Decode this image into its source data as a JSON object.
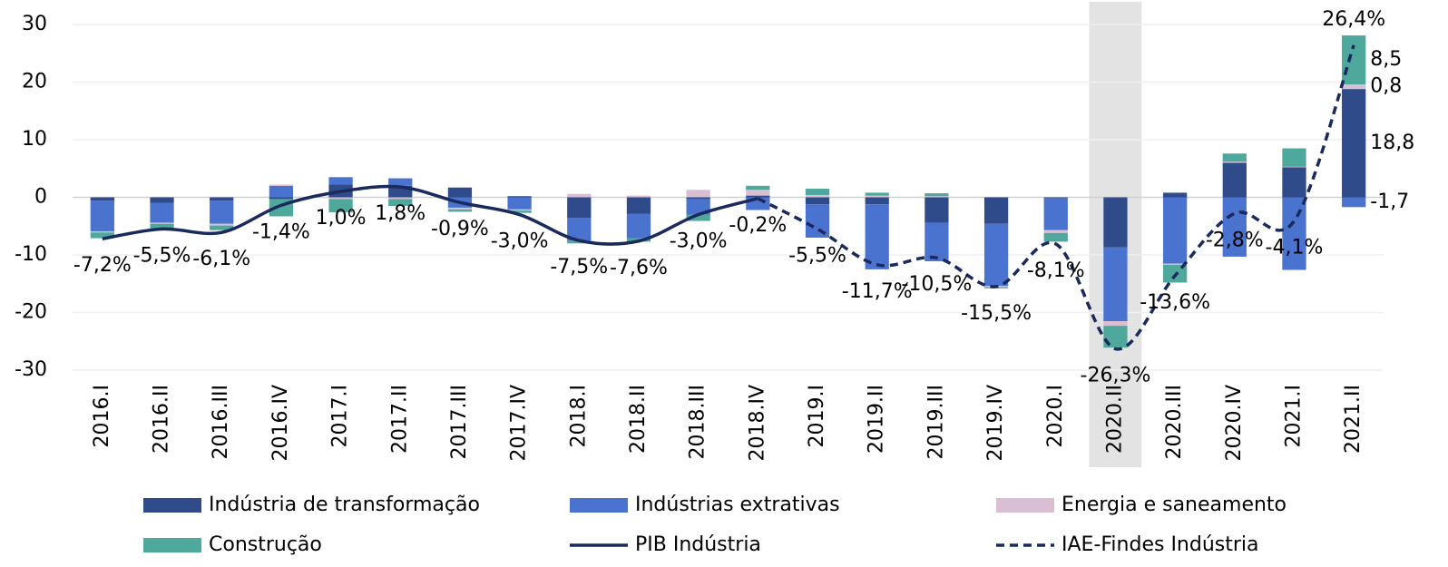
{
  "chart_data": {
    "type": "bar",
    "categories": [
      "2016.I",
      "2016.II",
      "2016.III",
      "2016.IV",
      "2017.I",
      "2017.II",
      "2017.III",
      "2017.IV",
      "2018.I",
      "2018.II",
      "2018.III",
      "2018.IV",
      "2019.I",
      "2019.II",
      "2019.III",
      "2019.IV",
      "2020.I",
      "2020.II",
      "2020.III",
      "2020.IV",
      "2021.I",
      "2021.II"
    ],
    "highlight": "2020.II",
    "ylim": [
      -30,
      30
    ],
    "yticks": [
      -30,
      -20,
      -10,
      0,
      10,
      20,
      30
    ],
    "grid": true,
    "series": [
      {
        "name": "Indústria de transformação",
        "color": "#2f4b8a",
        "label_color": "#3c5aa8",
        "values": [
          -0.6,
          -1.0,
          -0.6,
          -0.3,
          2.2,
          2.0,
          1.7,
          0.2,
          -3.6,
          -2.9,
          -0.3,
          0.3,
          -1.2,
          -1.2,
          -4.4,
          -4.6,
          -0.2,
          -8.7,
          0.8,
          6.0,
          5.2,
          18.8
        ],
        "value_labels": [
          null,
          null,
          null,
          null,
          null,
          null,
          null,
          null,
          null,
          null,
          null,
          null,
          null,
          null,
          null,
          null,
          null,
          null,
          null,
          null,
          null,
          "18,8"
        ]
      },
      {
        "name": "Indústrias extrativas",
        "color": "#4a72cf",
        "label_color": "#6f9be0",
        "values": [
          -5.3,
          -3.4,
          -4.0,
          2.0,
          1.3,
          1.3,
          -1.8,
          -2.1,
          -3.9,
          -4.2,
          -2.7,
          -2.2,
          -5.8,
          -11.3,
          -6.7,
          -10.8,
          -5.5,
          -12.8,
          -11.5,
          -10.3,
          -12.6,
          -1.7
        ],
        "value_labels": [
          null,
          null,
          null,
          null,
          null,
          null,
          null,
          null,
          null,
          null,
          null,
          null,
          null,
          null,
          null,
          null,
          null,
          null,
          null,
          null,
          null,
          "-1,7"
        ]
      },
      {
        "name": "Energia e saneamento",
        "color": "#d9bfd3",
        "label_color": "#000000",
        "values": [
          -0.2,
          -0.2,
          -0.3,
          0.2,
          -0.3,
          -0.3,
          -0.3,
          -0.2,
          0.6,
          0.3,
          1.3,
          1.0,
          0.4,
          0.3,
          0.2,
          -0.2,
          -0.5,
          -0.8,
          -0.2,
          0.2,
          0.1,
          0.8
        ],
        "value_labels": [
          null,
          null,
          null,
          null,
          null,
          null,
          null,
          null,
          null,
          null,
          null,
          null,
          null,
          null,
          null,
          null,
          null,
          null,
          null,
          null,
          null,
          "0,8"
        ]
      },
      {
        "name": "Construção",
        "color": "#4fa89c",
        "label_color": "#3e9a8c",
        "values": [
          -1.0,
          -0.8,
          -0.8,
          -3.0,
          -2.3,
          -1.2,
          -0.4,
          -0.4,
          -0.5,
          -0.6,
          -1.1,
          0.7,
          1.1,
          0.5,
          0.5,
          -0.2,
          -1.5,
          -3.8,
          -3.1,
          1.4,
          3.2,
          8.5
        ],
        "value_labels": [
          null,
          null,
          null,
          null,
          null,
          null,
          null,
          null,
          null,
          null,
          null,
          null,
          null,
          null,
          null,
          null,
          null,
          null,
          null,
          null,
          null,
          "8,5"
        ]
      },
      {
        "name": "PIB Indústria",
        "type": "line",
        "color": "#1a2a5c",
        "dash": false,
        "values": [
          -7.2,
          -5.5,
          -6.1,
          -1.4,
          1.0,
          1.8,
          -0.9,
          -3.0,
          -7.5,
          -7.6,
          -3.0,
          -0.2,
          null,
          null,
          null,
          null,
          null,
          null,
          null,
          null,
          null,
          null
        ],
        "value_labels": [
          "-7,2%",
          "-5,5%",
          "-6,1%",
          "-1,4%",
          "1,0%",
          "1,8%",
          "-0,9%",
          "-3,0%",
          "-7,5%",
          "-7,6%",
          "-3,0%",
          "-0,2%",
          null,
          null,
          null,
          null,
          null,
          null,
          null,
          null,
          null,
          null
        ]
      },
      {
        "name": "IAE-Findes Indústria",
        "type": "line",
        "color": "#1a2a5c",
        "dash": true,
        "values": [
          null,
          null,
          null,
          null,
          null,
          null,
          null,
          null,
          null,
          null,
          null,
          -0.2,
          -5.5,
          -11.7,
          -10.5,
          -15.5,
          -8.1,
          -26.3,
          -13.6,
          -2.8,
          -4.1,
          26.4
        ],
        "value_labels": [
          null,
          null,
          null,
          null,
          null,
          null,
          null,
          null,
          null,
          null,
          null,
          null,
          "-5,5%",
          "-11,7%",
          "-10,5%",
          "-15,5%",
          "-8,1%",
          "-26,3%",
          "-13,6%",
          "-2,8%",
          "-4,1%",
          "26,4%"
        ]
      }
    ]
  }
}
